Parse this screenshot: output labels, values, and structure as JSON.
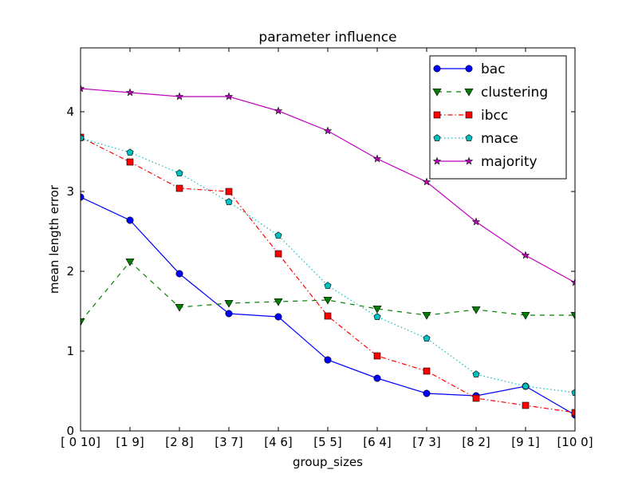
{
  "chart_data": {
    "type": "line",
    "title": "parameter influence",
    "xlabel": "group_sizes",
    "ylabel": "mean length error",
    "categories": [
      "[ 0 10]",
      "[1 9]",
      "[2 8]",
      "[3 7]",
      "[4 6]",
      "[5 5]",
      "[6 4]",
      "[7 3]",
      "[8 2]",
      "[9 1]",
      "[10  0]"
    ],
    "ylim": [
      0,
      4.8
    ],
    "yticks": [
      "0",
      "1",
      "2",
      "3",
      "4"
    ],
    "grid": false,
    "legend_position": "top-right",
    "series": [
      {
        "name": "bac",
        "color": "#0000ff",
        "marker": "circle",
        "linestyle": "solid",
        "values": [
          2.93,
          2.64,
          1.97,
          1.47,
          1.43,
          0.89,
          0.66,
          0.47,
          0.44,
          0.56,
          0.2
        ]
      },
      {
        "name": "clustering",
        "color": "#007f00",
        "marker": "triangle-down",
        "linestyle": "dashed",
        "values": [
          1.37,
          2.12,
          1.55,
          1.6,
          1.62,
          1.64,
          1.53,
          1.45,
          1.52,
          1.45,
          1.45
        ]
      },
      {
        "name": "ibcc",
        "color": "#ff0000",
        "marker": "square",
        "linestyle": "dashdot",
        "values": [
          3.68,
          3.37,
          3.04,
          3.0,
          2.22,
          1.44,
          0.94,
          0.75,
          0.41,
          0.32,
          0.23
        ]
      },
      {
        "name": "mace",
        "color": "#00bfbf",
        "marker": "pentagon",
        "linestyle": "dotted",
        "values": [
          3.67,
          3.49,
          3.23,
          2.87,
          2.45,
          1.82,
          1.43,
          1.16,
          0.71,
          0.56,
          0.48
        ]
      },
      {
        "name": "majority",
        "color": "#bf00bf",
        "marker": "star",
        "linestyle": "solid",
        "values": [
          4.29,
          4.24,
          4.19,
          4.19,
          4.01,
          3.76,
          3.41,
          3.12,
          2.62,
          2.2,
          1.86
        ]
      }
    ]
  }
}
